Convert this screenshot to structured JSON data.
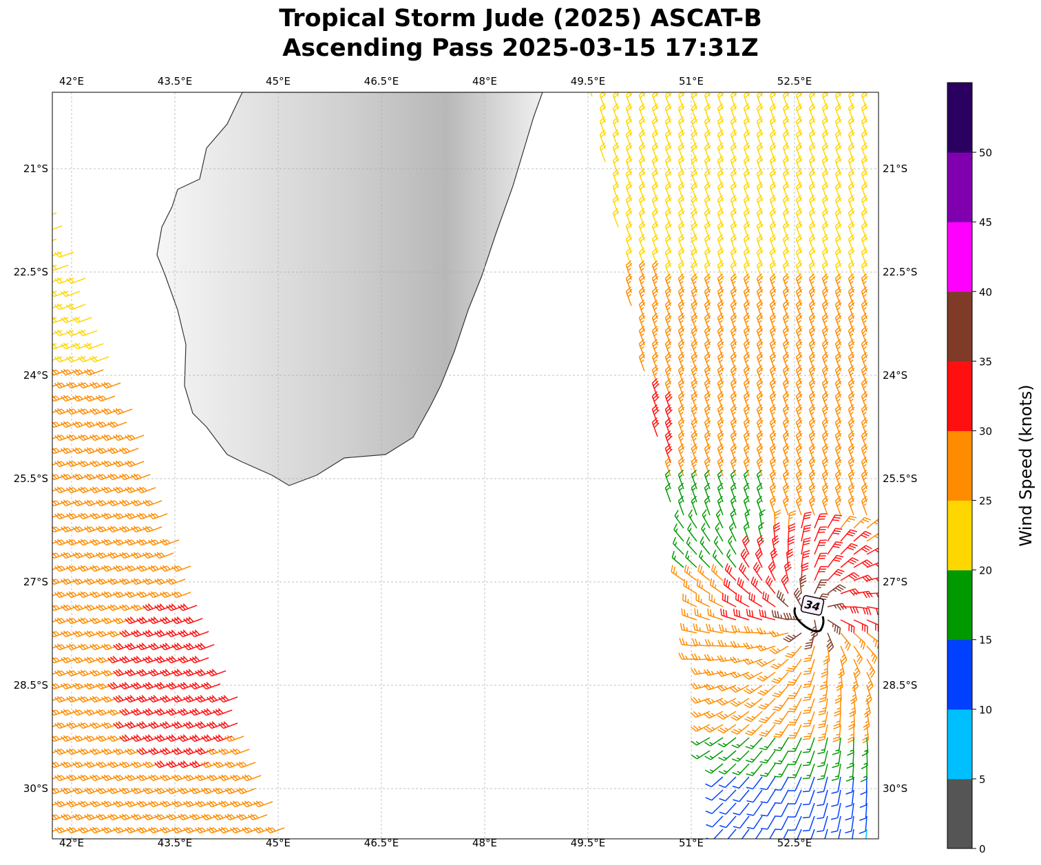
{
  "title": {
    "line1": "Tropical Storm Jude (2025) ASCAT-B",
    "line2": "Ascending Pass 2025-03-15 17:31Z"
  },
  "map": {
    "lon_ticks": [
      "42°E",
      "43.5°E",
      "45°E",
      "46.5°E",
      "48°E",
      "49.5°E",
      "51°E",
      "52.5°E"
    ],
    "lon_values": [
      42,
      43.5,
      45,
      46.5,
      48,
      49.5,
      51,
      52.5
    ],
    "lat_ticks": [
      "21°S",
      "22.5°S",
      "24°S",
      "25.5°S",
      "27°S",
      "28.5°S",
      "30°S"
    ],
    "lat_values": [
      21,
      22.5,
      24,
      25.5,
      27,
      28.5,
      30
    ],
    "lon_range": [
      41.72,
      53.72
    ],
    "lat_range": [
      19.89,
      30.73
    ],
    "storm_center": {
      "lon": 52.7,
      "lat": 27.35
    },
    "contour_label": "34"
  },
  "colorbar": {
    "label": "Wind Speed (knots)",
    "ticks": [
      "0",
      "5",
      "10",
      "15",
      "20",
      "25",
      "30",
      "35",
      "40",
      "45",
      "50"
    ],
    "bins": [
      0,
      5,
      10,
      15,
      20,
      25,
      30,
      35,
      40,
      45,
      50,
      55
    ],
    "colors": [
      "#555555",
      "#00bfff",
      "#0040ff",
      "#009900",
      "#ffd700",
      "#ff8c00",
      "#ff1010",
      "#7f3b28",
      "#ff00ff",
      "#8000b0",
      "#2a0060"
    ]
  }
}
